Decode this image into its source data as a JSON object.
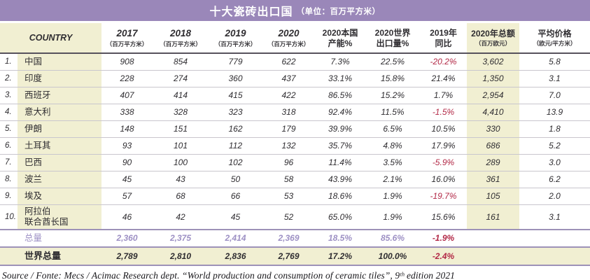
{
  "title": {
    "main": "十大瓷砖出口国",
    "unit": "（单位：百万平方米）"
  },
  "colors": {
    "title_bar_bg": "#9a87b9",
    "highlight_bg": "#f1efd2",
    "negative_text": "#b22846",
    "total_row_text": "#9d90c4",
    "separator": "#9d92b8"
  },
  "table": {
    "header": [
      {
        "label": "COUNTRY",
        "country": true,
        "colspan": 2
      },
      {
        "label": "2017",
        "sub": "（百万平方米）",
        "italic": true
      },
      {
        "label": "2018",
        "sub": "（百万平方米）",
        "italic": true
      },
      {
        "label": "2019",
        "sub": "（百万平方米）",
        "italic": true
      },
      {
        "label": "2020",
        "sub": "（百万平方米）",
        "italic": true
      },
      {
        "label": "2020本国",
        "label2": "产能%"
      },
      {
        "label": "2020世界",
        "label2": "出口量%"
      },
      {
        "label": "2019年",
        "label2": "同比"
      },
      {
        "label": "2020年总额",
        "sub": "（百万欧元）",
        "highlight": true
      },
      {
        "label": "平均价格",
        "sub": "（欧元/平方米）"
      }
    ],
    "rows": [
      {
        "rank": "1.",
        "country": "中国",
        "values": [
          "908",
          "854",
          "779",
          "622",
          "7.3%",
          "22.5%",
          "-20.2%",
          "3,602",
          "5.8"
        ]
      },
      {
        "rank": "2.",
        "country": "印度",
        "values": [
          "228",
          "274",
          "360",
          "437",
          "33.1%",
          "15.8%",
          "21.4%",
          "1,350",
          "3.1"
        ]
      },
      {
        "rank": "3.",
        "country": "西班牙",
        "values": [
          "407",
          "414",
          "415",
          "422",
          "86.5%",
          "15.2%",
          "1.7%",
          "2,954",
          "7.0"
        ]
      },
      {
        "rank": "4.",
        "country": "意大利",
        "values": [
          "338",
          "328",
          "323",
          "318",
          "92.4%",
          "11.5%",
          "-1.5%",
          "4,410",
          "13.9"
        ]
      },
      {
        "rank": "5.",
        "country": "伊朗",
        "values": [
          "148",
          "151",
          "162",
          "179",
          "39.9%",
          "6.5%",
          "10.5%",
          "330",
          "1.8"
        ]
      },
      {
        "rank": "6.",
        "country": "土耳其",
        "values": [
          "93",
          "101",
          "112",
          "132",
          "35.7%",
          "4.8%",
          "17.9%",
          "686",
          "5.2"
        ]
      },
      {
        "rank": "7.",
        "country": "巴西",
        "values": [
          "90",
          "100",
          "102",
          "96",
          "11.4%",
          "3.5%",
          "-5.9%",
          "289",
          "3.0"
        ]
      },
      {
        "rank": "8.",
        "country": "波兰",
        "values": [
          "45",
          "43",
          "50",
          "58",
          "43.9%",
          "2.1%",
          "16.0%",
          "361",
          "6.2"
        ]
      },
      {
        "rank": "9.",
        "country": "埃及",
        "values": [
          "57",
          "68",
          "66",
          "53",
          "18.6%",
          "1.9%",
          "-19.7%",
          "105",
          "2.0"
        ]
      },
      {
        "rank": "10.",
        "country": "阿拉伯\n联合酋长国",
        "values": [
          "46",
          "42",
          "45",
          "52",
          "65.0%",
          "1.9%",
          "15.6%",
          "161",
          "3.1"
        ]
      }
    ],
    "total_row": {
      "rank": "",
      "label": "总量",
      "values": [
        "2,360",
        "2,375",
        "2,414",
        "2,369",
        "18.5%",
        "85.6%",
        "-1.9%",
        "",
        ""
      ]
    },
    "world_total_row": {
      "rank": "",
      "label": "世界总量",
      "values": [
        "2,789",
        "2,810",
        "2,836",
        "2,769",
        "17.2%",
        "100.0%",
        "-2.4%",
        "",
        ""
      ]
    }
  },
  "source": "Source / Fonte: Mecs / Acimac Research dept. “World production and consumption of ceramic tiles”, 9ᵗʰ edition 2021"
}
